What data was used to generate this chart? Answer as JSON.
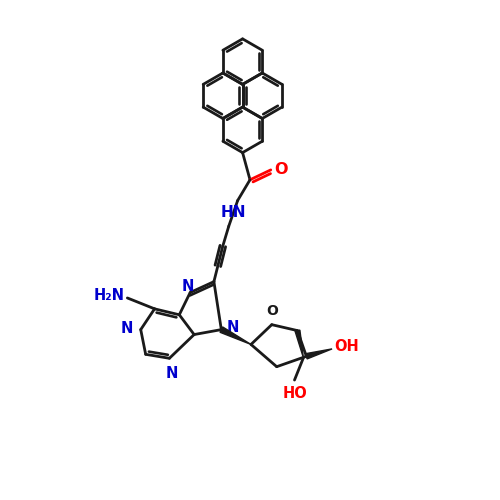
{
  "background_color": "#ffffff",
  "bond_color": "#1a1a1a",
  "nitrogen_color": "#0000cd",
  "oxygen_color": "#ff0000",
  "line_width": 2.0,
  "figsize": [
    5.0,
    5.0
  ],
  "dpi": 100,
  "xlim": [
    0,
    10
  ],
  "ylim": [
    0,
    10
  ]
}
